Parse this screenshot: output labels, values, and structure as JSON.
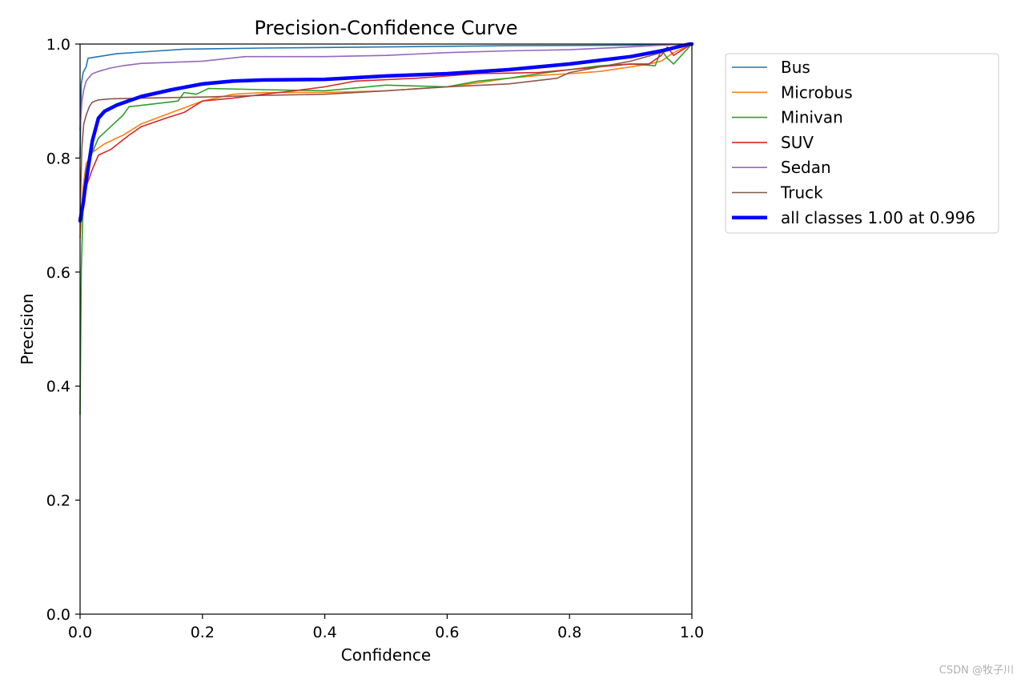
{
  "chart_data": {
    "type": "line",
    "title": "Precision-Confidence Curve",
    "xlabel": "Confidence",
    "ylabel": "Precision",
    "xlim": [
      0,
      1
    ],
    "ylim": [
      0,
      1
    ],
    "xticks": [
      "0.0",
      "0.2",
      "0.4",
      "0.6",
      "0.8",
      "1.0"
    ],
    "yticks": [
      "0.0",
      "0.2",
      "0.4",
      "0.6",
      "0.8",
      "1.0"
    ],
    "grid": false,
    "legend_position": "outside-right-top",
    "series": [
      {
        "name": "Bus",
        "color": "#1f77b4",
        "width": "thin",
        "x": [
          0.0,
          0.002,
          0.005,
          0.01,
          0.013,
          0.03,
          0.06,
          0.1,
          0.17,
          0.3,
          0.5,
          0.7,
          0.9,
          1.0
        ],
        "y": [
          0.8,
          0.93,
          0.95,
          0.96,
          0.975,
          0.978,
          0.983,
          0.986,
          0.991,
          0.993,
          0.995,
          0.997,
          0.998,
          1.0
        ]
      },
      {
        "name": "Microbus",
        "color": "#ff7f0e",
        "width": "thin",
        "x": [
          0.0,
          0.005,
          0.01,
          0.02,
          0.04,
          0.07,
          0.1,
          0.15,
          0.2,
          0.25,
          0.3,
          0.4,
          0.5,
          0.6,
          0.65,
          0.7,
          0.75,
          0.8,
          0.85,
          0.9,
          0.93,
          0.95,
          0.97,
          1.0
        ],
        "y": [
          0.66,
          0.75,
          0.79,
          0.81,
          0.825,
          0.84,
          0.86,
          0.88,
          0.9,
          0.912,
          0.915,
          0.915,
          0.918,
          0.925,
          0.932,
          0.94,
          0.945,
          0.948,
          0.952,
          0.96,
          0.965,
          0.97,
          0.985,
          1.0
        ]
      },
      {
        "name": "Minivan",
        "color": "#2ca02c",
        "width": "thin",
        "x": [
          0.0,
          0.002,
          0.005,
          0.01,
          0.02,
          0.03,
          0.05,
          0.07,
          0.08,
          0.12,
          0.16,
          0.17,
          0.19,
          0.21,
          0.3,
          0.4,
          0.5,
          0.6,
          0.65,
          0.7,
          0.75,
          0.8,
          0.85,
          0.9,
          0.94,
          0.95,
          0.96,
          0.97,
          1.0
        ],
        "y": [
          0.35,
          0.6,
          0.72,
          0.78,
          0.81,
          0.835,
          0.855,
          0.875,
          0.89,
          0.895,
          0.9,
          0.915,
          0.912,
          0.922,
          0.92,
          0.918,
          0.928,
          0.925,
          0.935,
          0.94,
          0.948,
          0.955,
          0.962,
          0.965,
          0.962,
          0.99,
          0.975,
          0.965,
          1.0
        ]
      },
      {
        "name": "SUV",
        "color": "#d62728",
        "width": "thin",
        "x": [
          0.0,
          0.005,
          0.01,
          0.02,
          0.03,
          0.05,
          0.08,
          0.1,
          0.14,
          0.17,
          0.2,
          0.25,
          0.3,
          0.35,
          0.4,
          0.45,
          0.55,
          0.65,
          0.75,
          0.8,
          0.85,
          0.9,
          0.93,
          0.95,
          0.96,
          0.97,
          1.0
        ],
        "y": [
          0.7,
          0.72,
          0.75,
          0.78,
          0.805,
          0.815,
          0.84,
          0.855,
          0.87,
          0.88,
          0.9,
          0.905,
          0.912,
          0.918,
          0.925,
          0.935,
          0.94,
          0.948,
          0.95,
          0.955,
          0.96,
          0.965,
          0.965,
          0.98,
          0.995,
          0.98,
          1.0
        ]
      },
      {
        "name": "Sedan",
        "color": "#9467bd",
        "width": "thin",
        "x": [
          0.0,
          0.003,
          0.006,
          0.01,
          0.015,
          0.02,
          0.03,
          0.05,
          0.07,
          0.1,
          0.15,
          0.2,
          0.27,
          0.4,
          0.5,
          0.6,
          0.7,
          0.8,
          0.9,
          0.95,
          1.0
        ],
        "y": [
          0.85,
          0.9,
          0.92,
          0.935,
          0.942,
          0.948,
          0.952,
          0.958,
          0.962,
          0.966,
          0.968,
          0.97,
          0.978,
          0.978,
          0.98,
          0.985,
          0.988,
          0.99,
          0.995,
          0.998,
          1.0
        ]
      },
      {
        "name": "Truck",
        "color": "#8c564b",
        "width": "thin",
        "x": [
          0.0,
          0.003,
          0.006,
          0.01,
          0.015,
          0.02,
          0.03,
          0.05,
          0.1,
          0.2,
          0.3,
          0.4,
          0.5,
          0.6,
          0.7,
          0.78,
          0.8,
          0.85,
          0.9,
          0.95,
          1.0
        ],
        "y": [
          0.7,
          0.82,
          0.86,
          0.875,
          0.89,
          0.898,
          0.902,
          0.904,
          0.905,
          0.907,
          0.91,
          0.912,
          0.918,
          0.925,
          0.93,
          0.94,
          0.95,
          0.96,
          0.97,
          0.985,
          1.0
        ]
      },
      {
        "name": "all classes 1.00 at 0.996",
        "color": "#0000ff",
        "width": "thick",
        "x": [
          0.0,
          0.005,
          0.01,
          0.02,
          0.03,
          0.04,
          0.06,
          0.1,
          0.15,
          0.2,
          0.25,
          0.3,
          0.4,
          0.5,
          0.6,
          0.7,
          0.8,
          0.9,
          0.95,
          0.996,
          1.0
        ],
        "y": [
          0.69,
          0.72,
          0.76,
          0.83,
          0.87,
          0.882,
          0.893,
          0.908,
          0.92,
          0.93,
          0.935,
          0.937,
          0.938,
          0.944,
          0.948,
          0.955,
          0.965,
          0.978,
          0.988,
          1.0,
          1.0
        ]
      }
    ]
  },
  "watermark": "CSDN @牧子川"
}
